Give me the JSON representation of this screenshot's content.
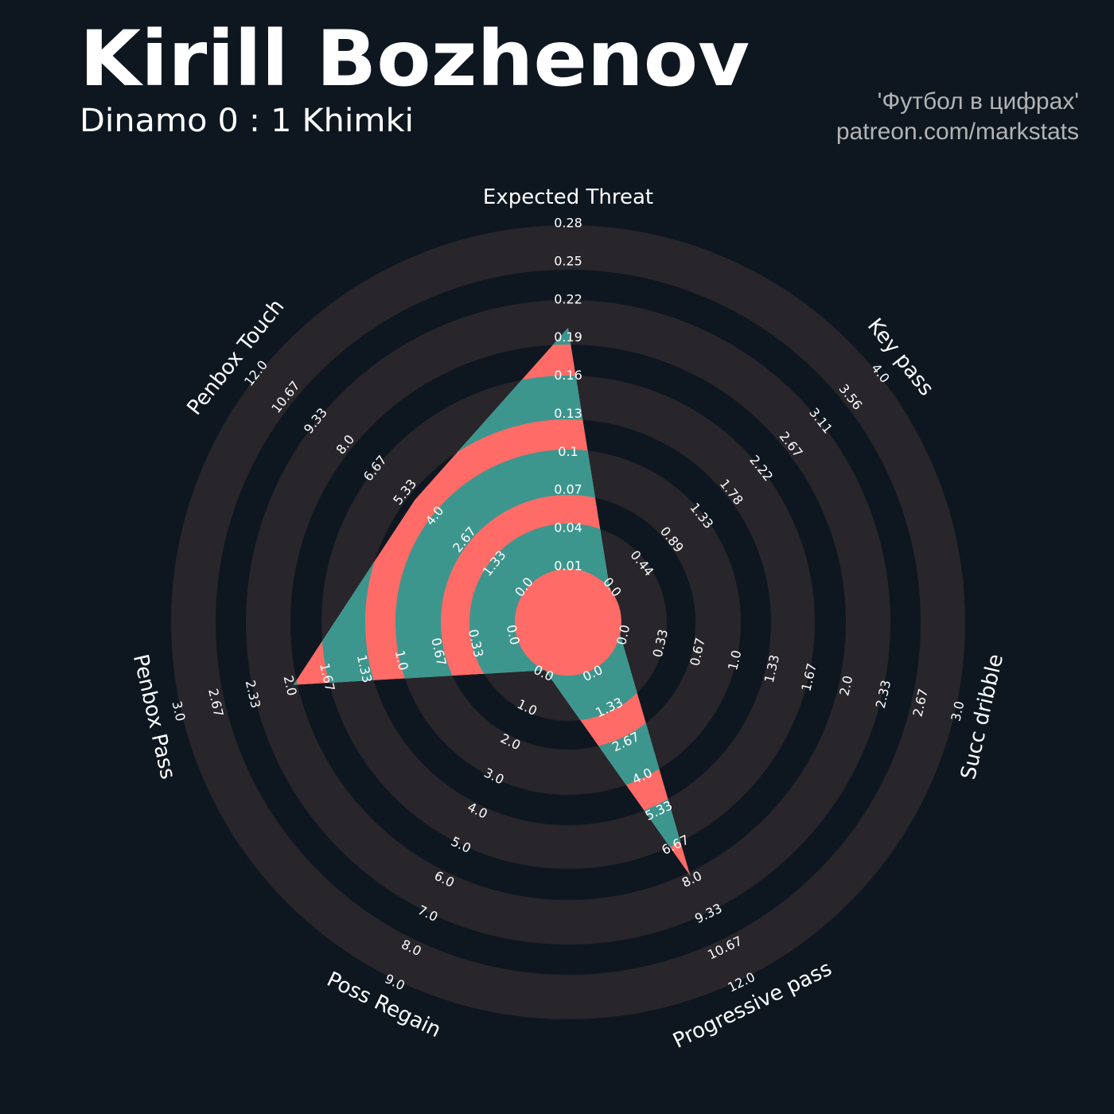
{
  "header": {
    "title": "Kirill Bozhenov",
    "subtitle": "Dinamo 0 : 1 Khimki",
    "credit_line1": "'Футбол в цифрах'",
    "credit_line2": "patreon.com/markstats"
  },
  "colors": {
    "background": "#0e1720",
    "ring_band": "#28252b",
    "polygon_primary": "#ff6b66",
    "polygon_secondary": "#3d968e",
    "text": "#ffffff",
    "credit_text": "#b3b3b3"
  },
  "chart_data": {
    "type": "radar",
    "num_rings": 4,
    "params": [
      {
        "name": "Expected Threat",
        "min": 0.01,
        "max": 0.28,
        "value": 0.2,
        "ticks": [
          "0.01",
          "0.04",
          "0.07",
          "0.1",
          "0.13",
          "0.16",
          "0.19",
          "0.22",
          "0.25",
          "0.28"
        ]
      },
      {
        "name": "Key pass",
        "min": 0.0,
        "max": 4.0,
        "value": 0.0,
        "ticks": [
          "0.0",
          "0.44",
          "0.89",
          "1.33",
          "1.78",
          "2.22",
          "2.67",
          "3.11",
          "3.56",
          "4.0"
        ]
      },
      {
        "name": "Succ dribble",
        "min": 0.0,
        "max": 3.0,
        "value": 0.0,
        "ticks": [
          "0.0",
          "0.33",
          "0.67",
          "1.0",
          "1.33",
          "1.67",
          "2.0",
          "2.33",
          "2.67",
          "3.0"
        ]
      },
      {
        "name": "Progressive pass",
        "min": 0.0,
        "max": 12.0,
        "value": 8.0,
        "ticks": [
          "0.0",
          "1.33",
          "2.67",
          "4.0",
          "5.33",
          "6.67",
          "8.0",
          "9.33",
          "10.67",
          "12.0"
        ]
      },
      {
        "name": "Poss Regain",
        "min": 0.0,
        "max": 9.0,
        "value": 0.0,
        "ticks": [
          "0.0",
          "1.0",
          "2.0",
          "3.0",
          "4.0",
          "5.0",
          "6.0",
          "7.0",
          "8.0",
          "9.0"
        ]
      },
      {
        "name": "Penbox Pass",
        "min": 0.0,
        "max": 3.0,
        "value": 2.0,
        "ticks": [
          "0.0",
          "0.33",
          "0.67",
          "1.0",
          "1.33",
          "1.67",
          "2.0",
          "2.33",
          "2.67",
          "3.0"
        ]
      },
      {
        "name": "Penbox Touch",
        "min": 0.0,
        "max": 12.0,
        "value": 5.0,
        "ticks": [
          "0.0",
          "1.33",
          "2.67",
          "4.0",
          "5.33",
          "6.67",
          "8.0",
          "9.33",
          "10.67",
          "12.0"
        ]
      }
    ]
  }
}
